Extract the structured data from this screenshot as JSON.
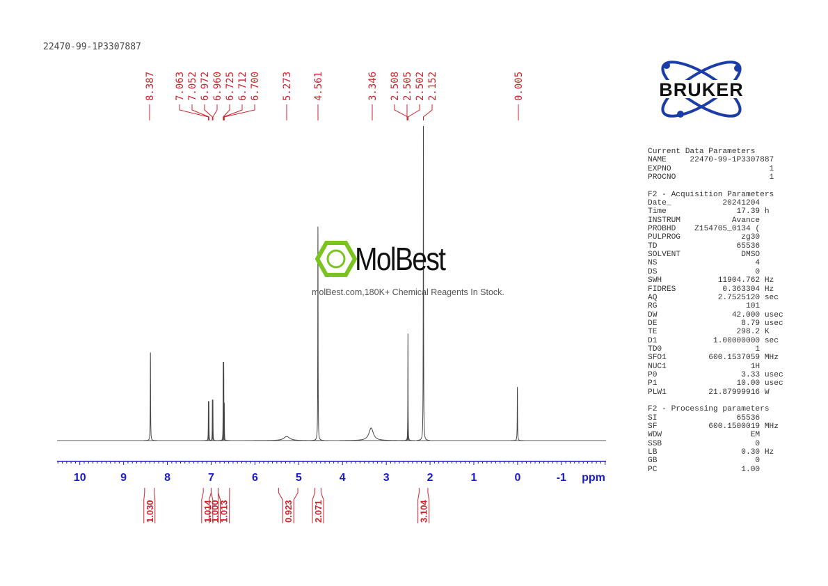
{
  "sample_name": "22470-99-1P3307887",
  "brand": "BRUKER",
  "watermark": {
    "name": "MolBest",
    "tagline": "molBest.com,180K+ Chemical Reagents In Stock."
  },
  "colors": {
    "spectrum": "#333333",
    "annotation": "#d0202a",
    "axis": "#1a1acc",
    "logo": "#1a3da8",
    "watermark_green": "#7bc31f"
  },
  "parameters": [
    "Current Data Parameters",
    "NAME     22470-99-1P3307887",
    "EXPNO                     1",
    "PROCNO                    1",
    "",
    "F2 - Acquisition Parameters",
    "Date_           20241204",
    "Time               17.39 h",
    "INSTRUM           Avance",
    "PROBHD    Z154705_0134 (",
    "PULPROG             zg30",
    "TD                 65536",
    "SOLVENT             DMSO",
    "NS                     4",
    "DS                     0",
    "SWH            11904.762 Hz",
    "FIDRES          0.363304 Hz",
    "AQ             2.7525120 sec",
    "RG                   101",
    "DW                42.000 usec",
    "DE                  8.79 usec",
    "TE                 298.2 K",
    "D1            1.00000000 sec",
    "TD0                    1",
    "SFO1         600.1537059 MHz",
    "NUC1                  1H",
    "P0                  3.33 usec",
    "P1                 10.00 usec",
    "PLW1         21.87999916 W",
    "",
    "F2 - Processing parameters",
    "SI                 65536",
    "SF           600.1500019 MHz",
    "WDW                   EM",
    "SSB                    0",
    "LB                  0.30 Hz",
    "GB                     0",
    "PC                  1.00"
  ],
  "chart_data": {
    "type": "line",
    "xlabel": "ppm",
    "xlim": [
      10.52,
      -2.02
    ],
    "x_reversed": true,
    "x_ticks": [
      "10",
      "9",
      "8",
      "7",
      "6",
      "5",
      "4",
      "3",
      "2",
      "1",
      "0",
      "-1"
    ],
    "grid": false,
    "peaks": [
      {
        "ppm": 8.387,
        "intensity": 28,
        "width": 0.004
      },
      {
        "ppm": 7.063,
        "intensity": 12.5,
        "width": 0.003
      },
      {
        "ppm": 7.052,
        "intensity": 12.5,
        "width": 0.003
      },
      {
        "ppm": 6.972,
        "intensity": 13,
        "width": 0.003
      },
      {
        "ppm": 6.96,
        "intensity": 13,
        "width": 0.003
      },
      {
        "ppm": 6.725,
        "intensity": 25,
        "width": 0.003
      },
      {
        "ppm": 6.712,
        "intensity": 25,
        "width": 0.003
      },
      {
        "ppm": 6.7,
        "intensity": 12,
        "width": 0.003
      },
      {
        "ppm": 5.273,
        "intensity": 1.3,
        "width": 0.08
      },
      {
        "ppm": 4.561,
        "intensity": 68,
        "width": 0.004
      },
      {
        "ppm": 3.346,
        "intensity": 4,
        "width": 0.06
      },
      {
        "ppm": 2.508,
        "intensity": 8,
        "width": 0.003
      },
      {
        "ppm": 2.505,
        "intensity": 34,
        "width": 0.003
      },
      {
        "ppm": 2.502,
        "intensity": 8,
        "width": 0.003
      },
      {
        "ppm": 2.152,
        "intensity": 100,
        "width": 0.004
      },
      {
        "ppm": 0.005,
        "intensity": 17,
        "width": 0.004
      }
    ],
    "peak_labels": [
      "8.387",
      "7.063",
      "7.052",
      "6.972",
      "6.960",
      "6.725",
      "6.712",
      "6.700",
      "5.273",
      "4.561",
      "3.346",
      "2.508",
      "2.505",
      "2.502",
      "2.152",
      "0.005"
    ],
    "integrals": [
      {
        "from": 8.52,
        "to": 8.3,
        "value": "1.030"
      },
      {
        "from": 7.18,
        "to": 7.0,
        "value": "1.014"
      },
      {
        "from": 7.0,
        "to": 6.84,
        "value": "1.000"
      },
      {
        "from": 6.84,
        "to": 6.58,
        "value": "1.013"
      },
      {
        "from": 5.46,
        "to": 5.02,
        "value": "0.923"
      },
      {
        "from": 4.63,
        "to": 4.49,
        "value": "2.071"
      },
      {
        "from": 2.25,
        "to": 2.05,
        "value": "3.104"
      }
    ]
  }
}
